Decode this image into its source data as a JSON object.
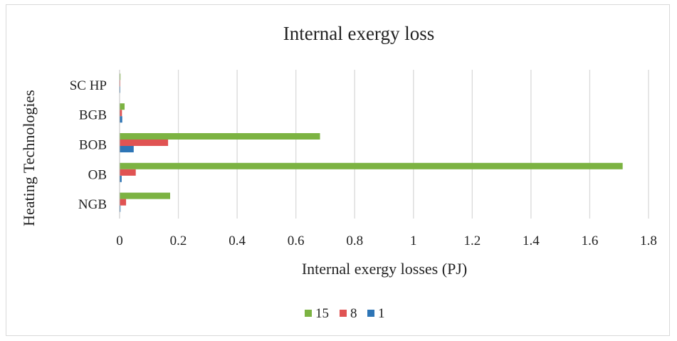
{
  "chart_data": {
    "type": "bar",
    "orientation": "horizontal",
    "title": "Internal exergy loss",
    "xlabel": "Internal exergy losses (PJ)",
    "ylabel": "Heating Technologies",
    "categories": [
      "NGB",
      "OB",
      "BOB",
      "BGB",
      "SC HP"
    ],
    "series": [
      {
        "name": "1",
        "color": "#2e75b6",
        "values": [
          0.003,
          0.007,
          0.048,
          0.009,
          0.002
        ]
      },
      {
        "name": "8",
        "color": "#e05353",
        "values": [
          0.022,
          0.055,
          0.165,
          0.008,
          0.002
        ]
      },
      {
        "name": "15",
        "color": "#7cb342",
        "values": [
          0.172,
          1.712,
          0.682,
          0.017,
          0.003
        ]
      }
    ],
    "xlim": [
      0,
      1.8
    ],
    "xticks": [
      "0",
      "0.2",
      "0.4",
      "0.6",
      "0.8",
      "1",
      "1.2",
      "1.4",
      "1.6",
      "1.8"
    ],
    "grid": true,
    "legend_position": "bottom"
  }
}
